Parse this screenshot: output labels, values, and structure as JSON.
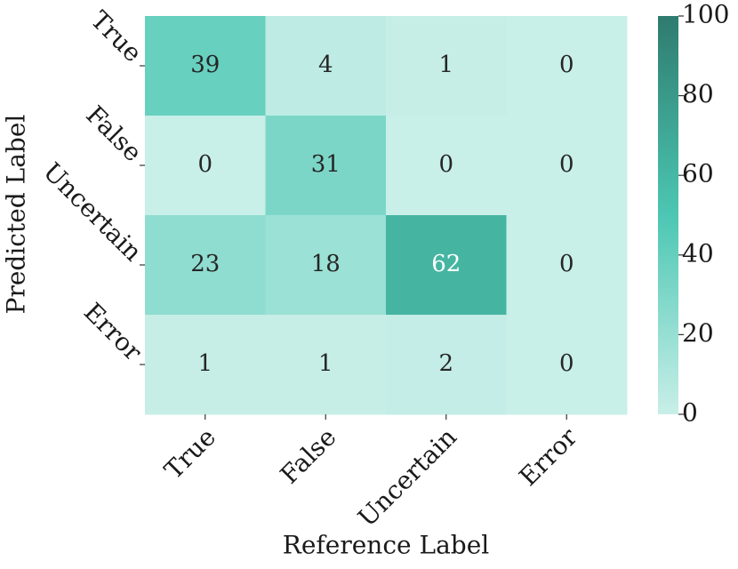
{
  "chart_data": {
    "type": "heatmap",
    "xlabel": "Reference Label",
    "ylabel": "Predicted Label",
    "x_categories": [
      "True",
      "False",
      "Uncertain",
      "Error"
    ],
    "y_categories": [
      "True",
      "False",
      "Uncertain",
      "Error"
    ],
    "values": [
      [
        39,
        4,
        1,
        0
      ],
      [
        0,
        31,
        0,
        0
      ],
      [
        23,
        18,
        62,
        0
      ],
      [
        1,
        1,
        2,
        0
      ]
    ],
    "colormap": [
      "#c8efe8",
      "#4cc7b3",
      "#2e7b6e"
    ],
    "clim": [
      0,
      100
    ],
    "cticks": [
      0,
      20,
      40,
      60,
      80,
      100
    ]
  }
}
